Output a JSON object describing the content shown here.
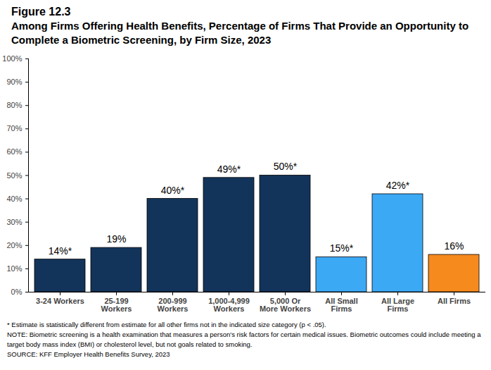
{
  "chart_data": {
    "type": "bar",
    "title": "Figure 12.3",
    "subtitle": "Among Firms Offering Health Benefits, Percentage of Firms That Provide an Opportunity to Complete a Biometric Screening, by Firm Size, 2023",
    "categories": [
      "3-24 Workers",
      "25-199\nWorkers",
      "200-999\nWorkers",
      "1,000-4,999\nWorkers",
      "5,000 Or\nMore Workers",
      "All Small\nFirms",
      "All Large\nFirms",
      "All Firms"
    ],
    "values": [
      14,
      19,
      40,
      49,
      50,
      15,
      42,
      16
    ],
    "value_labels": [
      "14%*",
      "19%",
      "40%*",
      "49%*",
      "50%*",
      "15%*",
      "42%*",
      "16%"
    ],
    "colors": [
      "#13345a",
      "#13345a",
      "#13345a",
      "#13345a",
      "#13345a",
      "#3ca9f5",
      "#3ca9f5",
      "#f78a1d"
    ],
    "data_labels": true,
    "ylim": [
      0,
      100
    ],
    "yticks": [
      {
        "value": 0,
        "label": "0%"
      },
      {
        "value": 10,
        "label": "10%"
      },
      {
        "value": 20,
        "label": "20%"
      },
      {
        "value": 30,
        "label": "30%"
      },
      {
        "value": 40,
        "label": "40%"
      },
      {
        "value": 50,
        "label": "50%"
      },
      {
        "value": 60,
        "label": "60%"
      },
      {
        "value": 70,
        "label": "70%"
      },
      {
        "value": 80,
        "label": "80%"
      },
      {
        "value": 90,
        "label": "90%"
      },
      {
        "value": 100,
        "label": "100%"
      }
    ],
    "grid": false,
    "notes": [
      "* Estimate is statistically different from estimate for all other firms not in the indicated size category (p < .05).",
      "NOTE: Biometric screening is a health examination that measures a person's risk factors for certain medical issues. Biometric outcomes could include meeting a target body mass index (BMI) or cholesterol level, but not goals related to smoking.",
      "SOURCE: KFF Employer Health Benefits Survey, 2023"
    ]
  }
}
